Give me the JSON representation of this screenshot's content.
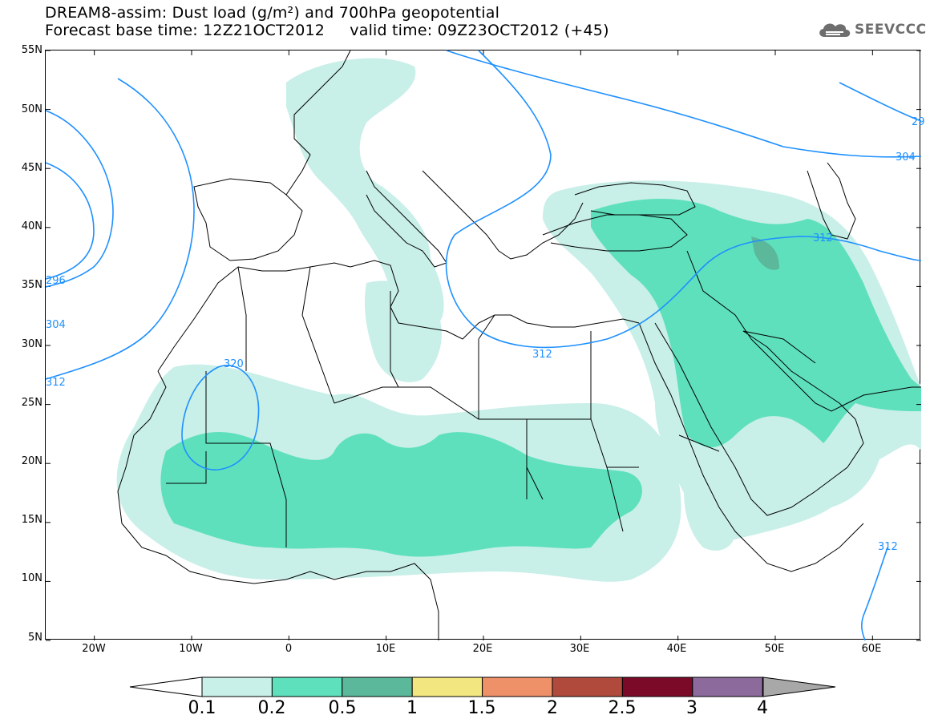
{
  "header": {
    "line1": "DREAM8-assim: Dust load (g/m²) and 700hPa geopotential",
    "line2": "Forecast base time: 12Z21OCT2012     valid time: 09Z23OCT2012 (+45)"
  },
  "logo": {
    "icon": "cloud-icon",
    "text": "SEEVCCC",
    "color": "#6e6e6e"
  },
  "map": {
    "projection": "lat-lon",
    "lon_range": [
      -25,
      65
    ],
    "lat_range": [
      5,
      55
    ],
    "lat_labels": [
      "55N",
      "50N",
      "45N",
      "40N",
      "35N",
      "30N",
      "25N",
      "20N",
      "15N",
      "10N",
      "5N"
    ],
    "lon_labels": [
      "20W",
      "10W",
      "0",
      "10E",
      "20E",
      "30E",
      "40E",
      "50E",
      "60E"
    ],
    "contour_color": "#1e90ff",
    "contour_labels": [
      "320",
      "312",
      "312",
      "312",
      "304",
      "296",
      "304",
      "312",
      "29"
    ],
    "dust_level_colors": {
      "0.1-0.2": "#c8efe8",
      "0.2-0.5": "#5ee0bd",
      "0.5-1": "#5bb89a"
    }
  },
  "colorbar": {
    "colors": [
      "#c8efe8",
      "#5ee0bd",
      "#5bb89a",
      "#f2e680",
      "#ee9068",
      "#b04a3c",
      "#7a0a28",
      "#8c6a9c",
      "#a8a8a8"
    ],
    "labels": [
      "0.1",
      "0.2",
      "0.5",
      "1",
      "1.5",
      "2",
      "2.5",
      "3",
      "4"
    ]
  }
}
